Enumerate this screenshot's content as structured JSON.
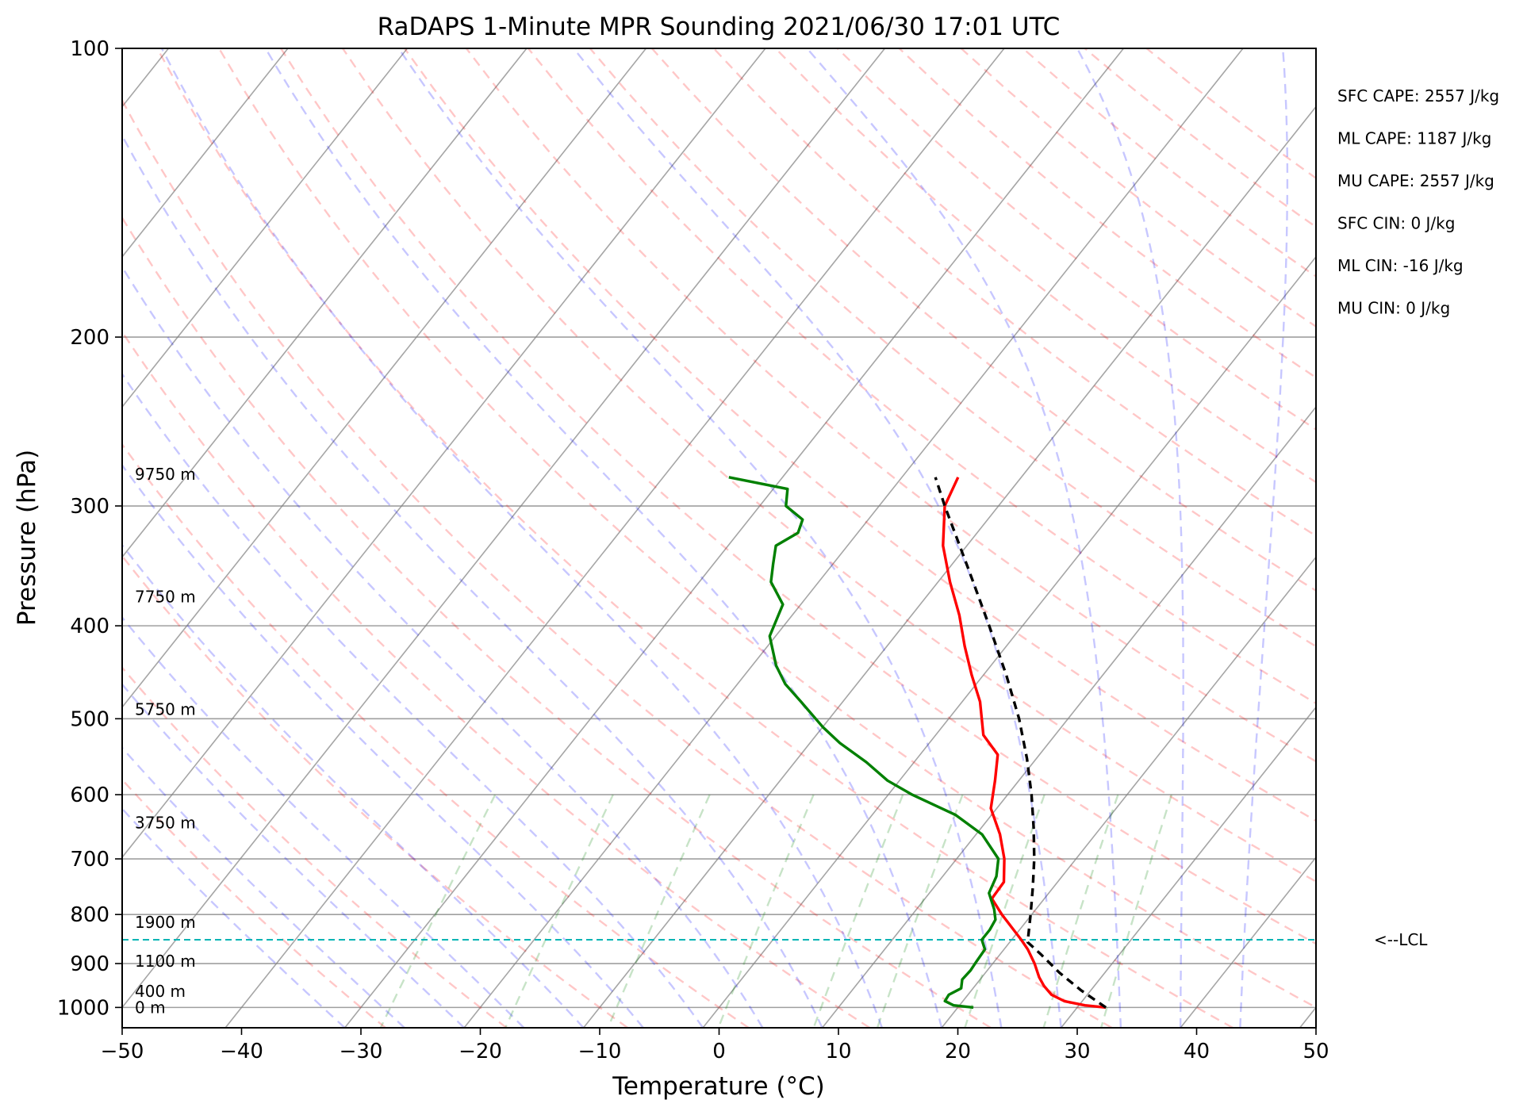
{
  "chart_data": {
    "type": "line",
    "title": "RaDAPS 1-Minute MPR Sounding 2021/06/30 17:01 UTC",
    "xlabel": "Temperature (°C)",
    "ylabel": "Pressure (hPa)",
    "xlim": [
      -50,
      50
    ],
    "ylim": [
      1050,
      100
    ],
    "y_scale": "log",
    "x_ticks": [
      -50,
      -40,
      -30,
      -20,
      -10,
      0,
      10,
      20,
      30,
      40,
      50
    ],
    "x_tick_labels": [
      "−50",
      "−40",
      "−30",
      "−20",
      "−10",
      "0",
      "10",
      "20",
      "30",
      "40",
      "50"
    ],
    "y_ticks": [
      100,
      200,
      300,
      400,
      500,
      600,
      700,
      800,
      900,
      1000
    ],
    "y_tick_labels": [
      "100",
      "200",
      "300",
      "400",
      "500",
      "600",
      "700",
      "800",
      "900",
      "1000"
    ],
    "grid": true,
    "series": [
      {
        "color": "#ff0000",
        "points": [
          {
            "p": 1000,
            "t": 32.4
          },
          {
            "p": 995,
            "t": 30.5
          },
          {
            "p": 985,
            "t": 28.5
          },
          {
            "p": 970,
            "t": 27.0
          },
          {
            "p": 950,
            "t": 25.8
          },
          {
            "p": 930,
            "t": 24.8
          },
          {
            "p": 900,
            "t": 23.5
          },
          {
            "p": 870,
            "t": 22.0
          },
          {
            "p": 850,
            "t": 20.8
          },
          {
            "p": 830,
            "t": 19.5
          },
          {
            "p": 800,
            "t": 17.5
          },
          {
            "p": 770,
            "t": 15.6
          },
          {
            "p": 740,
            "t": 15.5
          },
          {
            "p": 700,
            "t": 14.0
          },
          {
            "p": 660,
            "t": 12.0
          },
          {
            "p": 620,
            "t": 9.5
          },
          {
            "p": 580,
            "t": 8.0
          },
          {
            "p": 545,
            "t": 6.5
          },
          {
            "p": 520,
            "t": 4.0
          },
          {
            "p": 480,
            "t": 1.5
          },
          {
            "p": 450,
            "t": -1.0
          },
          {
            "p": 420,
            "t": -3.5
          },
          {
            "p": 390,
            "t": -6.0
          },
          {
            "p": 360,
            "t": -9.0
          },
          {
            "p": 330,
            "t": -12.0
          },
          {
            "p": 300,
            "t": -14.5
          },
          {
            "p": 280,
            "t": -15.3
          }
        ]
      },
      {
        "color": "#008000",
        "points": [
          {
            "p": 1000,
            "t": 21.3
          },
          {
            "p": 995,
            "t": 19.5
          },
          {
            "p": 985,
            "t": 18.5
          },
          {
            "p": 970,
            "t": 18.4
          },
          {
            "p": 955,
            "t": 19.0
          },
          {
            "p": 935,
            "t": 18.5
          },
          {
            "p": 915,
            "t": 18.6
          },
          {
            "p": 895,
            "t": 18.5
          },
          {
            "p": 870,
            "t": 18.4
          },
          {
            "p": 850,
            "t": 17.5
          },
          {
            "p": 830,
            "t": 17.5
          },
          {
            "p": 810,
            "t": 17.3
          },
          {
            "p": 790,
            "t": 16.5
          },
          {
            "p": 760,
            "t": 15.0
          },
          {
            "p": 730,
            "t": 14.5
          },
          {
            "p": 700,
            "t": 13.5
          },
          {
            "p": 660,
            "t": 10.5
          },
          {
            "p": 630,
            "t": 7.0
          },
          {
            "p": 600,
            "t": 2.0
          },
          {
            "p": 580,
            "t": -1.0
          },
          {
            "p": 555,
            "t": -4.0
          },
          {
            "p": 530,
            "t": -7.5
          },
          {
            "p": 510,
            "t": -10.0
          },
          {
            "p": 480,
            "t": -13.5
          },
          {
            "p": 460,
            "t": -16.0
          },
          {
            "p": 440,
            "t": -18.0
          },
          {
            "p": 410,
            "t": -20.5
          },
          {
            "p": 380,
            "t": -21.5
          },
          {
            "p": 360,
            "t": -24.0
          },
          {
            "p": 345,
            "t": -25.0
          },
          {
            "p": 330,
            "t": -26.0
          },
          {
            "p": 320,
            "t": -25.0
          },
          {
            "p": 310,
            "t": -25.5
          },
          {
            "p": 300,
            "t": -27.8
          },
          {
            "p": 288,
            "t": -28.8
          },
          {
            "p": 280,
            "t": -34.5
          }
        ]
      },
      {
        "color": "#000000",
        "points": [
          {
            "p": 1000,
            "t": 32.4
          },
          {
            "p": 960,
            "t": 29.2
          },
          {
            "p": 920,
            "t": 26.2
          },
          {
            "p": 880,
            "t": 23.4
          },
          {
            "p": 855,
            "t": 21.5
          },
          {
            "p": 800,
            "t": 19.9
          },
          {
            "p": 750,
            "t": 18.3
          },
          {
            "p": 700,
            "t": 16.5
          },
          {
            "p": 650,
            "t": 14.4
          },
          {
            "p": 600,
            "t": 12.0
          },
          {
            "p": 550,
            "t": 9.2
          },
          {
            "p": 500,
            "t": 5.9
          },
          {
            "p": 450,
            "t": 1.9
          },
          {
            "p": 400,
            "t": -2.8
          },
          {
            "p": 350,
            "t": -8.2
          },
          {
            "p": 300,
            "t": -14.5
          },
          {
            "p": 280,
            "t": -17.2
          }
        ]
      }
    ],
    "lcl": {
      "p": 850,
      "label": "<--LCL",
      "color": "#00b4b4"
    },
    "height_labels": [
      {
        "text": "9750 m",
        "p": 278
      },
      {
        "text": "7750 m",
        "p": 373
      },
      {
        "text": "5750 m",
        "p": 489
      },
      {
        "text": "3750 m",
        "p": 642
      },
      {
        "text": "1900 m",
        "p": 815
      },
      {
        "text": "1100 m",
        "p": 895
      },
      {
        "text": "400 m",
        "p": 962
      },
      {
        "text": "0 m",
        "p": 1000
      }
    ],
    "stats": [
      "SFC CAPE: 2557 J/kg",
      "ML CAPE: 1187 J/kg",
      "MU CAPE: 2557 J/kg",
      "SFC CIN: 0 J/kg",
      "ML CIN: -16 J/kg",
      "MU CIN: 0 J/kg"
    ],
    "background_lines": {
      "dry_adiabat_color": "#ff0000",
      "moist_adiabat_color": "#0000ff",
      "mixing_ratio_color": "#008000",
      "isotherm_color": "#808080"
    }
  }
}
